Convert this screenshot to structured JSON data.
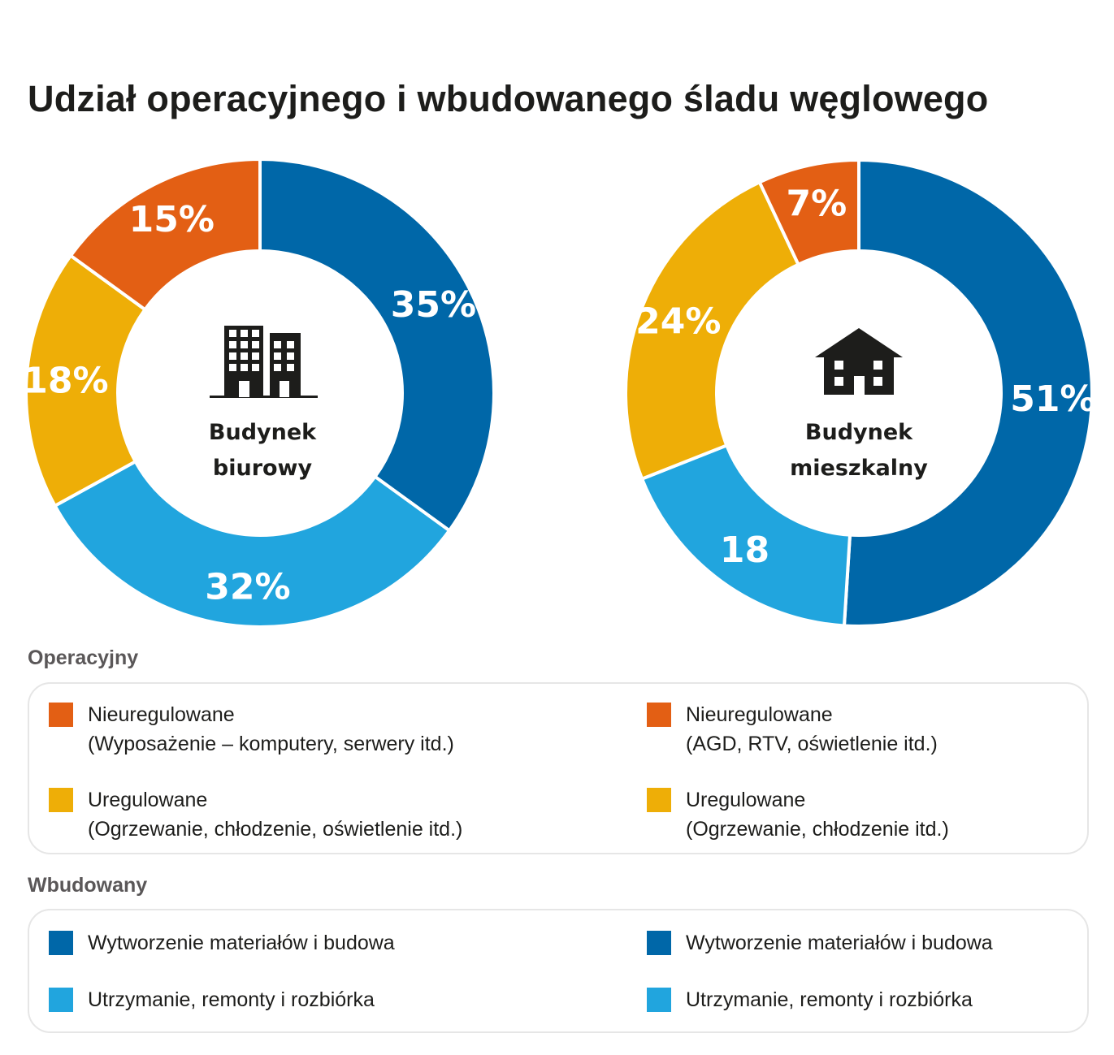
{
  "title": "Udział operacyjnego i wbudowanego śladu węglowego",
  "colors": {
    "blue_dark": "#0067a8",
    "blue_light": "#21a5de",
    "yellow": "#eeae07",
    "orange": "#e35f14"
  },
  "chart_data": [
    {
      "type": "pie",
      "variant": "donut",
      "title": "Budynek biurowy",
      "center_icon": "office-building-icon",
      "center_label_lines": [
        "Budynek",
        "biurowy"
      ],
      "start": "12 o'clock, clockwise",
      "slices": [
        {
          "category": "Wytworzenie materiałów i budowa",
          "value": 35,
          "label": "35%",
          "color": "#0067a8"
        },
        {
          "category": "Utrzymanie, remonty i rozbiórka",
          "value": 32,
          "label": "32%",
          "color": "#21a5de"
        },
        {
          "category": "Uregulowane",
          "value": 18,
          "label": "18%",
          "color": "#eeae07"
        },
        {
          "category": "Nieuregulowane",
          "value": 15,
          "label": "15%",
          "color": "#e35f14"
        }
      ]
    },
    {
      "type": "pie",
      "variant": "donut",
      "title": "Budynek mieszkalny",
      "center_icon": "house-icon",
      "center_label_lines": [
        "Budynek",
        "mieszkalny"
      ],
      "start": "12 o'clock, clockwise",
      "slices": [
        {
          "category": "Wytworzenie materiałów i budowa",
          "value": 51,
          "label": "51%",
          "color": "#0067a8"
        },
        {
          "category": "Utrzymanie, remonty i rozbiórka",
          "value": 18,
          "label": "18",
          "color": "#21a5de"
        },
        {
          "category": "Uregulowane",
          "value": 24,
          "label": "24%",
          "color": "#eeae07"
        },
        {
          "category": "Nieuregulowane",
          "value": 7,
          "label": "7%",
          "color": "#e35f14"
        }
      ]
    }
  ],
  "legend": {
    "operational": {
      "title": "Operacyjny",
      "left": [
        {
          "color": "#e35f14",
          "line1": "Nieuregulowane",
          "line2": "(Wyposażenie – komputery, serwery itd.)"
        },
        {
          "color": "#eeae07",
          "line1": "Uregulowane",
          "line2": "(Ogrzewanie, chłodzenie, oświetlenie itd.)"
        }
      ],
      "right": [
        {
          "color": "#e35f14",
          "line1": "Nieuregulowane",
          "line2": "(AGD, RTV, oświetlenie itd.)"
        },
        {
          "color": "#eeae07",
          "line1": "Uregulowane",
          "line2": "(Ogrzewanie, chłodzenie itd.)"
        }
      ]
    },
    "embodied": {
      "title": "Wbudowany",
      "left": [
        {
          "color": "#0067a8",
          "line1": "Wytworzenie materiałów i budowa"
        },
        {
          "color": "#21a5de",
          "line1": "Utrzymanie, remonty i rozbiórka"
        }
      ],
      "right": [
        {
          "color": "#0067a8",
          "line1": "Wytworzenie materiałów i budowa"
        },
        {
          "color": "#21a5de",
          "line1": "Utrzymanie, remonty i rozbiórka"
        }
      ]
    }
  }
}
